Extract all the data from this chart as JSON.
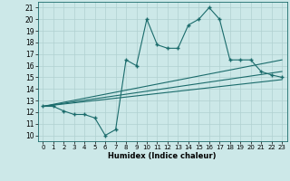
{
  "xlabel": "Humidex (Indice chaleur)",
  "bg_color": "#cce8e8",
  "grid_color": "#b0d0d0",
  "line_color": "#1a6b6b",
  "xlim": [
    -0.5,
    23.5
  ],
  "ylim": [
    9.5,
    21.5
  ],
  "xticks": [
    0,
    1,
    2,
    3,
    4,
    5,
    6,
    7,
    8,
    9,
    10,
    11,
    12,
    13,
    14,
    15,
    16,
    17,
    18,
    19,
    20,
    21,
    22,
    23
  ],
  "yticks": [
    10,
    11,
    12,
    13,
    14,
    15,
    16,
    17,
    18,
    19,
    20,
    21
  ],
  "main_x": [
    0,
    1,
    2,
    3,
    4,
    5,
    6,
    7,
    8,
    9,
    10,
    11,
    12,
    13,
    14,
    15,
    16,
    17,
    18,
    19,
    20,
    21,
    22,
    23
  ],
  "main_y": [
    12.5,
    12.5,
    12.1,
    11.8,
    11.8,
    11.5,
    10.0,
    10.5,
    16.5,
    16.0,
    20.0,
    17.8,
    17.5,
    17.5,
    19.5,
    20.0,
    21.0,
    20.0,
    16.5,
    16.5,
    16.5,
    15.5,
    15.2,
    15.0
  ],
  "trend1_x": [
    0,
    23
  ],
  "trend1_y": [
    12.5,
    16.5
  ],
  "trend2_x": [
    0,
    23
  ],
  "trend2_y": [
    12.5,
    15.5
  ],
  "trend3_x": [
    0,
    23
  ],
  "trend3_y": [
    12.5,
    14.8
  ]
}
